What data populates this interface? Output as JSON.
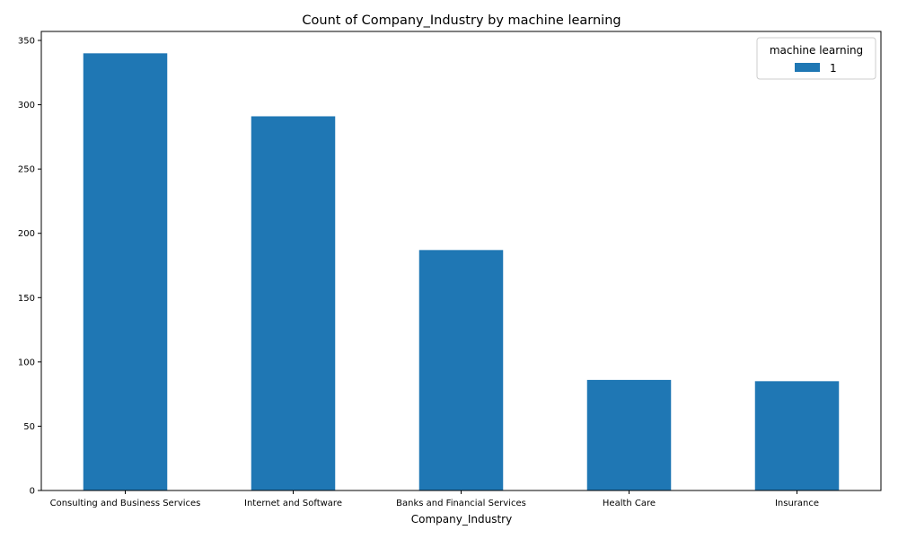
{
  "chart_data": {
    "type": "bar",
    "title": "Count of Company_Industry by machine learning",
    "xlabel": "Company_Industry",
    "ylabel": "",
    "categories": [
      "Consulting and Business Services",
      "Internet and Software",
      "Banks and Financial Services",
      "Health Care",
      "Insurance"
    ],
    "series": [
      {
        "name": "1",
        "values": [
          340,
          291,
          187,
          86,
          85
        ],
        "color": "#1f77b4"
      }
    ],
    "ylim": [
      0,
      357
    ],
    "yticks": [
      0,
      50,
      100,
      150,
      200,
      250,
      300,
      350
    ],
    "grid": false,
    "legend": {
      "title": "machine learning",
      "position": "top-right"
    }
  }
}
